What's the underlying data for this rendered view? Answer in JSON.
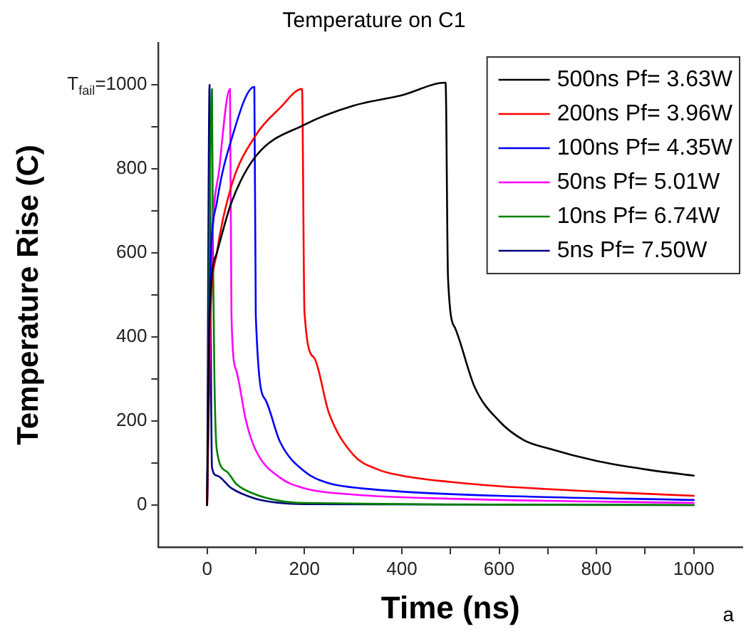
{
  "chart_data": {
    "type": "line",
    "title": "Temperature on C1",
    "xlabel": "Time (ns)",
    "ylabel": "Temperature Rise (C)",
    "annotations": [
      "a"
    ],
    "xlim": [
      -100,
      1100
    ],
    "xticks": [
      0,
      {
        "value": 100,
        "label": null
      },
      200,
      {
        "value": 300,
        "label": null
      },
      400,
      {
        "value": 500,
        "label": null
      },
      600,
      {
        "value": 700,
        "label": null
      },
      800,
      {
        "value": 900,
        "label": null
      },
      1000
    ],
    "ylim": [
      -100,
      1100
    ],
    "yticks": [
      0,
      {
        "value": 100,
        "label": null
      },
      200,
      {
        "value": 300,
        "label": null
      },
      400,
      {
        "value": 500,
        "label": null
      },
      600,
      {
        "value": 700,
        "label": null
      },
      800,
      {
        "value": 900,
        "label": null
      },
      {
        "value": 1000,
        "label": "T$_{fail}$=1000"
      }
    ],
    "grid": false,
    "legend": "top right",
    "marker": "none",
    "line_style": "solid",
    "series": [
      {
        "name": "500ns Pf= 3.63W",
        "color": "#000000",
        "x": [
          0,
          5,
          20,
          50,
          100,
          200,
          300,
          400,
          490,
          495,
          510,
          550,
          600,
          650,
          700,
          800,
          900,
          1000
        ],
        "values": [
          0,
          450,
          600,
          720,
          830,
          905,
          950,
          975,
          1005,
          540,
          420,
          280,
          200,
          155,
          135,
          105,
          85,
          70
        ]
      },
      {
        "name": "200ns Pf= 3.96W",
        "color": "#ff0000",
        "x": [
          0,
          5,
          20,
          50,
          100,
          150,
          195,
          200,
          220,
          250,
          300,
          350,
          400,
          500,
          600,
          800,
          1000
        ],
        "values": [
          0,
          400,
          600,
          760,
          880,
          945,
          990,
          460,
          350,
          220,
          120,
          85,
          70,
          55,
          45,
          32,
          22
        ]
      },
      {
        "name": "100ns Pf= 4.35W",
        "color": "#0000ff",
        "x": [
          0,
          5,
          20,
          50,
          97,
          100,
          120,
          150,
          200,
          250,
          300,
          400,
          600,
          1000
        ],
        "values": [
          0,
          500,
          720,
          870,
          995,
          450,
          250,
          150,
          80,
          52,
          42,
          32,
          22,
          12
        ]
      },
      {
        "name": "50ns Pf= 5.01W",
        "color": "#ff00ff",
        "x": [
          0,
          10,
          25,
          47,
          50,
          60,
          80,
          100,
          150,
          200,
          300,
          500,
          1000
        ],
        "values": [
          0,
          600,
          800,
          990,
          450,
          320,
          200,
          130,
          65,
          40,
          25,
          15,
          5
        ]
      },
      {
        "name": "10ns Pf= 6.74W",
        "color": "#008000",
        "x": [
          0,
          10,
          12,
          15,
          20,
          40,
          60,
          100,
          150,
          200,
          1000
        ],
        "values": [
          0,
          990,
          600,
          300,
          130,
          80,
          50,
          25,
          10,
          5,
          0
        ]
      },
      {
        "name": "5ns Pf= 7.50W",
        "color": "#000080",
        "x": [
          0,
          5,
          8,
          10,
          20,
          50,
          100,
          150,
          200,
          1000
        ],
        "values": [
          0,
          1000,
          300,
          90,
          70,
          40,
          15,
          5,
          2,
          0
        ]
      }
    ]
  }
}
